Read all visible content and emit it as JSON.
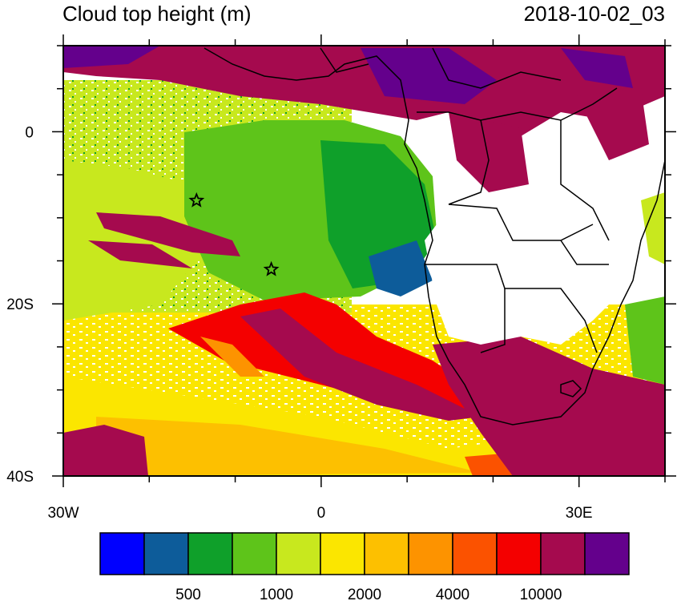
{
  "header": {
    "title": "Cloud top height (m)",
    "timestamp": "2018-10-02_03"
  },
  "map": {
    "lon_range": [
      -30,
      40
    ],
    "lat_range": [
      -40,
      10
    ],
    "x_ticks": [
      {
        "lon": -30,
        "label": "30W"
      },
      {
        "lon": 0,
        "label": "0"
      },
      {
        "lon": 30,
        "label": "30E"
      }
    ],
    "y_ticks": [
      {
        "lat": 0,
        "label": "0"
      },
      {
        "lat": -20,
        "label": "20S"
      },
      {
        "lat": -40,
        "label": "40S"
      }
    ],
    "markers": [
      {
        "type": "star",
        "lon": -14.5,
        "lat": -8
      },
      {
        "type": "star",
        "lon": -5.8,
        "lat": -16
      }
    ]
  },
  "colorbar": {
    "colors": [
      "#0000ff",
      "#0d5c9a",
      "#0fa02a",
      "#5ec41a",
      "#c8e81e",
      "#fbe600",
      "#fdc000",
      "#fd9300",
      "#fb5200",
      "#f40000",
      "#a50a4e",
      "#64008c"
    ],
    "labels": [
      {
        "after_index": 1,
        "text": "500"
      },
      {
        "after_index": 3,
        "text": "1000"
      },
      {
        "after_index": 5,
        "text": "2000"
      },
      {
        "after_index": 7,
        "text": "4000"
      },
      {
        "after_index": 9,
        "text": "10000"
      }
    ]
  }
}
